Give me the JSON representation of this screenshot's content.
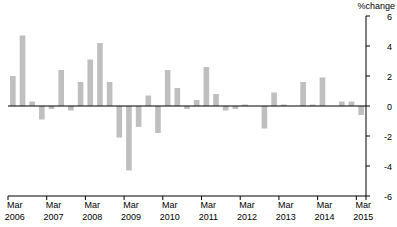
{
  "chart_data": {
    "type": "bar",
    "y_label": "%change",
    "categories": [
      "Mar 2006",
      null,
      null,
      null,
      "Mar 2007",
      null,
      null,
      null,
      "Mar 2008",
      null,
      null,
      null,
      "Mar 2009",
      null,
      null,
      null,
      "Mar 2010",
      null,
      null,
      null,
      "Mar 2011",
      null,
      null,
      null,
      "Mar 2012",
      null,
      null,
      null,
      "Mar 2013",
      null,
      null,
      null,
      "Mar 2014",
      null,
      null,
      null,
      "Mar 2015"
    ],
    "values": [
      2.0,
      4.7,
      0.3,
      -0.9,
      -0.2,
      2.4,
      -0.3,
      1.6,
      3.1,
      4.2,
      1.6,
      -2.1,
      -4.3,
      -1.4,
      0.7,
      -1.8,
      2.4,
      1.2,
      -0.2,
      0.4,
      2.6,
      0.8,
      -0.3,
      -0.2,
      0.1,
      0.0,
      -1.5,
      0.9,
      0.1,
      0.0,
      1.6,
      0.1,
      1.9,
      0.0,
      0.3,
      0.3,
      -0.6
    ],
    "color": "#bfbfbf",
    "ylim": [
      -6,
      6
    ],
    "yticks": [
      -6,
      -4,
      -2,
      0,
      2,
      4,
      6
    ],
    "grid": false
  }
}
